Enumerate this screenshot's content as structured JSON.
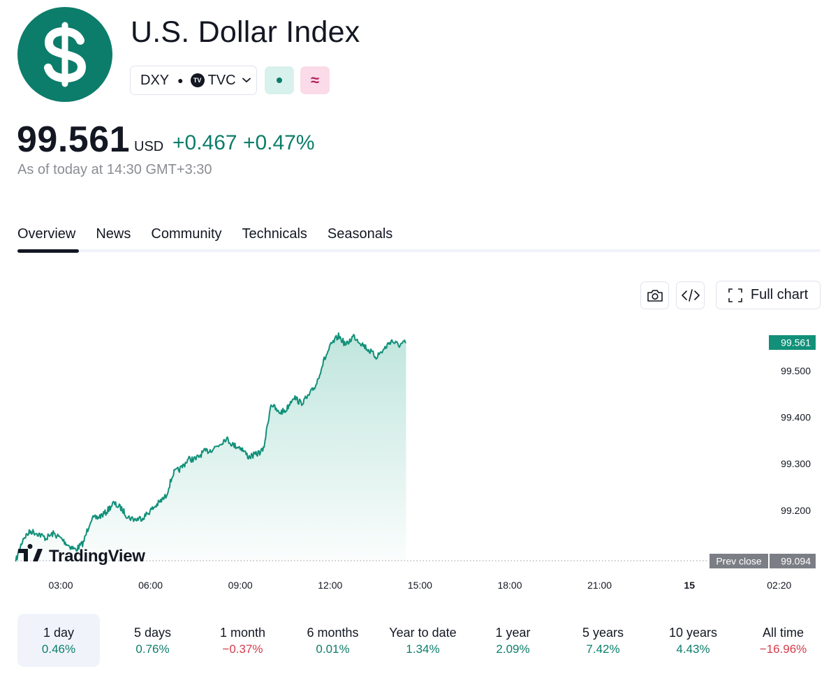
{
  "header": {
    "logo_icon": "dollar-sign-icon",
    "title": "U.S. Dollar Index",
    "symbol": "DXY",
    "exchange": "TVC",
    "exchange_logo": "TV",
    "market_status_icon": "market-open-dot-icon",
    "badge2_icon": "approx-icon",
    "badge2_text": "≈"
  },
  "quote": {
    "price": "99.561",
    "currency": "USD",
    "change": "+0.467",
    "change_pct": "+0.47%",
    "as_of": "As of today at 14:30 GMT+3:30"
  },
  "tabs": [
    {
      "label": "Overview",
      "active": true
    },
    {
      "label": "News"
    },
    {
      "label": "Community"
    },
    {
      "label": "Technicals"
    },
    {
      "label": "Seasonals"
    }
  ],
  "toolbar": {
    "camera_icon": "camera-icon",
    "embed_icon": "code-icon",
    "full_chart_label": "Full chart"
  },
  "chart_data": {
    "type": "area",
    "x_ticks": [
      "03:00",
      "06:00",
      "09:00",
      "12:00",
      "15:00",
      "18:00",
      "21:00",
      "15",
      "02:20"
    ],
    "y_ticks": [
      "99.500",
      "99.400",
      "99.300",
      "99.200"
    ],
    "ylim": [
      99.08,
      99.6
    ],
    "last_value_label": "99.561",
    "prev_close_label": "Prev close",
    "prev_close_value": "99.094",
    "prev_close": 99.094,
    "watermark": "TradingView",
    "colors": {
      "line": "#129079",
      "fill": "#2ba88c",
      "label_bg": "#129079"
    },
    "series_points": [
      [
        "01:30",
        99.09
      ],
      [
        "01:45",
        99.14
      ],
      [
        "02:00",
        99.155
      ],
      [
        "02:15",
        99.15
      ],
      [
        "02:30",
        99.14
      ],
      [
        "02:45",
        99.15
      ],
      [
        "03:00",
        99.14
      ],
      [
        "03:15",
        99.125
      ],
      [
        "03:30",
        99.115
      ],
      [
        "03:45",
        99.13
      ],
      [
        "04:00",
        99.18
      ],
      [
        "04:15",
        99.185
      ],
      [
        "04:30",
        99.195
      ],
      [
        "04:45",
        99.215
      ],
      [
        "05:00",
        99.205
      ],
      [
        "05:15",
        99.185
      ],
      [
        "05:30",
        99.18
      ],
      [
        "05:45",
        99.185
      ],
      [
        "06:00",
        99.2
      ],
      [
        "06:15",
        99.215
      ],
      [
        "06:30",
        99.23
      ],
      [
        "06:45",
        99.28
      ],
      [
        "07:00",
        99.29
      ],
      [
        "07:15",
        99.31
      ],
      [
        "07:30",
        99.31
      ],
      [
        "07:45",
        99.325
      ],
      [
        "08:00",
        99.33
      ],
      [
        "08:15",
        99.34
      ],
      [
        "08:30",
        99.355
      ],
      [
        "08:45",
        99.34
      ],
      [
        "09:00",
        99.335
      ],
      [
        "09:15",
        99.315
      ],
      [
        "09:30",
        99.32
      ],
      [
        "09:45",
        99.33
      ],
      [
        "10:00",
        99.43
      ],
      [
        "10:15",
        99.41
      ],
      [
        "10:30",
        99.415
      ],
      [
        "10:45",
        99.445
      ],
      [
        "11:00",
        99.43
      ],
      [
        "11:15",
        99.445
      ],
      [
        "11:30",
        99.47
      ],
      [
        "11:45",
        99.52
      ],
      [
        "12:00",
        99.555
      ],
      [
        "12:15",
        99.575
      ],
      [
        "12:30",
        99.555
      ],
      [
        "12:45",
        99.575
      ],
      [
        "13:00",
        99.56
      ],
      [
        "13:15",
        99.545
      ],
      [
        "13:30",
        99.53
      ],
      [
        "13:45",
        99.545
      ],
      [
        "14:00",
        99.565
      ],
      [
        "14:15",
        99.555
      ],
      [
        "14:30",
        99.561
      ]
    ]
  },
  "periods": [
    {
      "label": "1 day",
      "value": "0.46%",
      "sign": "pos",
      "active": true
    },
    {
      "label": "5 days",
      "value": "0.76%",
      "sign": "pos"
    },
    {
      "label": "1 month",
      "value": "−0.37%",
      "sign": "neg"
    },
    {
      "label": "6 months",
      "value": "0.01%",
      "sign": "pos"
    },
    {
      "label": "Year to date",
      "value": "1.34%",
      "sign": "pos"
    },
    {
      "label": "1 year",
      "value": "2.09%",
      "sign": "pos"
    },
    {
      "label": "5 years",
      "value": "7.42%",
      "sign": "pos"
    },
    {
      "label": "10 years",
      "value": "4.43%",
      "sign": "pos"
    },
    {
      "label": "All time",
      "value": "−16.96%",
      "sign": "neg"
    }
  ]
}
